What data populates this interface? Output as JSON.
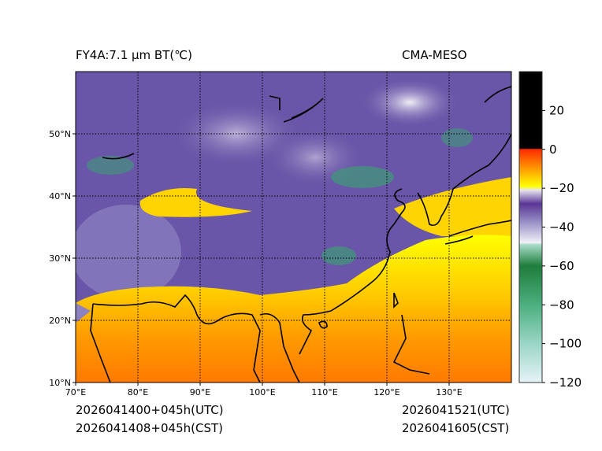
{
  "title_left": "FY4A:7.1 µm BT(℃)",
  "title_right": "CMA-MESO",
  "footer": {
    "init_utc": "2026041400+045h(UTC)",
    "init_cst": "2026041408+045h(CST)",
    "valid_utc": "2026041521(UTC)",
    "valid_cst": "2026041605(CST)"
  },
  "chart_data": {
    "type": "heatmap",
    "title": "FY4A:7.1 µm BT(℃)",
    "xlim": [
      70,
      140
    ],
    "ylim": [
      10,
      60
    ],
    "x_ticks": [
      70,
      80,
      90,
      100,
      110,
      120,
      130
    ],
    "x_tick_labels": [
      "70°E",
      "80°E",
      "90°E",
      "100°E",
      "110°E",
      "120°E",
      "130°E"
    ],
    "y_ticks": [
      10,
      20,
      30,
      40,
      50
    ],
    "y_tick_labels": [
      "10°N",
      "20°N",
      "30°N",
      "40°N",
      "50°N"
    ],
    "grid": true,
    "colorbar": {
      "range": [
        -120,
        40
      ],
      "ticks": [
        20,
        0,
        -20,
        -40,
        -60,
        -80,
        -100,
        -120
      ],
      "tick_labels": [
        "20",
        "0",
        "−20",
        "−40",
        "−60",
        "−80",
        "−100",
        "−120"
      ],
      "stops": [
        {
          "value": 40,
          "color": "#000000"
        },
        {
          "value": 0.5,
          "color": "#000000"
        },
        {
          "value": 0,
          "color": "#ff2a00"
        },
        {
          "value": -10,
          "color": "#ff9a00"
        },
        {
          "value": -19,
          "color": "#ffff00"
        },
        {
          "value": -21,
          "color": "#e8e4f0"
        },
        {
          "value": -28,
          "color": "#5a3595"
        },
        {
          "value": -38,
          "color": "#9d95c8"
        },
        {
          "value": -48,
          "color": "#f2f0f8"
        },
        {
          "value": -49,
          "color": "#a8dcc8"
        },
        {
          "value": -60,
          "color": "#1e7d3c"
        },
        {
          "value": -80,
          "color": "#4caf7f"
        },
        {
          "value": -100,
          "color": "#9ad6c6"
        },
        {
          "value": -120,
          "color": "#e6f3f8"
        }
      ]
    }
  }
}
